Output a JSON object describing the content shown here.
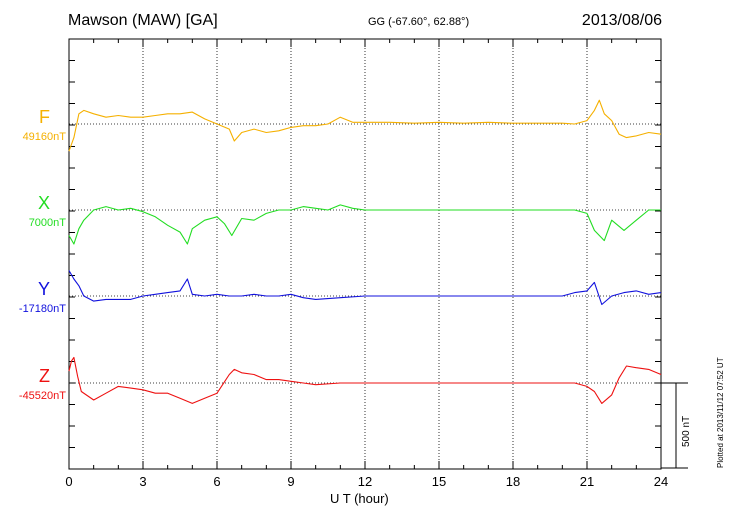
{
  "header": {
    "title": "Mawson (MAW)  [GA]",
    "coords": "GG (-67.60°,  62.88°)",
    "date": "2013/08/06"
  },
  "plotted_note": "Plotted at 2013/11/12 07:52 UT",
  "scale_bar_label": "500 nT",
  "colors": {
    "F": "#f5b000",
    "X": "#22dd22",
    "Y": "#1111dd",
    "Z": "#ee1111"
  },
  "chart_data": {
    "type": "line",
    "title": "Mawson (MAW)  [GA]",
    "xlabel": "U T (hour)",
    "ylabel": "",
    "xlim": [
      0,
      24
    ],
    "x_ticks": [
      0,
      3,
      6,
      9,
      12,
      15,
      18,
      21,
      24
    ],
    "tick_labels": [
      "0",
      "3",
      "6",
      "9",
      "12",
      "15",
      "18",
      "21",
      "24"
    ],
    "grid": true,
    "scale_bar_nT": 500,
    "channels": [
      {
        "name": "F",
        "baseline_label": "49160nT",
        "color": "#f5b000",
        "x": [
          0,
          0.2,
          0.4,
          0.6,
          1,
          1.5,
          2,
          2.5,
          3,
          3.5,
          4,
          4.5,
          5,
          5.5,
          6,
          6.5,
          6.7,
          7,
          7.5,
          8,
          8.5,
          9,
          9.5,
          10,
          10.5,
          11,
          11.5,
          12,
          13,
          14,
          15,
          16,
          17,
          18,
          19,
          20,
          20.5,
          21,
          21.3,
          21.5,
          21.7,
          22,
          22.3,
          22.6,
          23,
          23.5,
          24
        ],
        "values": [
          -160,
          -80,
          60,
          80,
          60,
          40,
          50,
          40,
          40,
          50,
          60,
          60,
          70,
          30,
          0,
          -30,
          -100,
          -50,
          -30,
          -50,
          -40,
          -20,
          -10,
          -10,
          0,
          40,
          10,
          10,
          10,
          5,
          10,
          5,
          10,
          5,
          5,
          5,
          0,
          20,
          80,
          140,
          60,
          20,
          -60,
          -80,
          -70,
          -50,
          -60
        ]
      },
      {
        "name": "X",
        "baseline_label": "7000nT",
        "color": "#22dd22",
        "x": [
          0,
          0.2,
          0.4,
          0.6,
          1,
          1.5,
          2,
          2.5,
          3,
          3.5,
          4,
          4.5,
          4.8,
          5,
          5.5,
          6,
          6.3,
          6.6,
          7,
          7.5,
          8,
          8.5,
          9,
          9.5,
          10,
          10.5,
          11,
          11.5,
          12,
          13,
          14,
          15,
          16,
          17,
          18,
          19,
          20,
          20.5,
          21,
          21.3,
          21.7,
          22,
          22.5,
          23,
          23.5,
          24
        ],
        "values": [
          -150,
          -200,
          -110,
          -60,
          0,
          20,
          0,
          10,
          -10,
          -40,
          -90,
          -130,
          -200,
          -110,
          -60,
          -40,
          -80,
          -150,
          -50,
          -60,
          -20,
          0,
          0,
          20,
          10,
          0,
          30,
          10,
          0,
          0,
          0,
          0,
          0,
          0,
          0,
          0,
          0,
          0,
          -20,
          -120,
          -180,
          -60,
          -120,
          -60,
          0,
          0
        ]
      },
      {
        "name": "Y",
        "baseline_label": "-17180nT",
        "color": "#1111dd",
        "x": [
          0,
          0.2,
          0.4,
          0.6,
          1,
          1.5,
          2,
          2.5,
          3,
          3.5,
          4,
          4.5,
          4.8,
          5,
          5.5,
          6,
          6.5,
          7,
          7.5,
          8,
          8.5,
          9,
          9.5,
          10,
          11,
          12,
          13,
          14,
          15,
          16,
          17,
          18,
          19,
          20,
          20.5,
          21,
          21.3,
          21.6,
          22,
          22.5,
          23,
          23.5,
          24
        ],
        "values": [
          150,
          100,
          60,
          0,
          -30,
          -20,
          -20,
          -20,
          0,
          10,
          20,
          30,
          100,
          10,
          0,
          10,
          0,
          0,
          10,
          0,
          0,
          10,
          -10,
          -20,
          -10,
          0,
          0,
          0,
          0,
          0,
          0,
          0,
          0,
          0,
          20,
          30,
          80,
          -50,
          0,
          20,
          30,
          10,
          20
        ]
      },
      {
        "name": "Z",
        "baseline_label": "-45520nT",
        "color": "#ee1111",
        "x": [
          0,
          0.1,
          0.2,
          0.35,
          0.5,
          1,
          1.5,
          2,
          2.5,
          3,
          3.5,
          4,
          4.5,
          5,
          5.5,
          6,
          6.5,
          6.7,
          7,
          7.5,
          8,
          8.5,
          9,
          9.5,
          10,
          11,
          12,
          13,
          14,
          15,
          16,
          17,
          18,
          19,
          20,
          20.5,
          21,
          21.3,
          21.6,
          22,
          22.3,
          22.6,
          23,
          23.5,
          24
        ],
        "values": [
          70,
          130,
          150,
          40,
          -50,
          -100,
          -60,
          -20,
          -30,
          -40,
          -60,
          -60,
          -90,
          -120,
          -90,
          -60,
          50,
          80,
          60,
          50,
          20,
          20,
          10,
          0,
          -10,
          0,
          0,
          0,
          0,
          0,
          0,
          0,
          0,
          0,
          0,
          0,
          -20,
          -50,
          -120,
          -70,
          30,
          100,
          90,
          80,
          50
        ]
      }
    ]
  }
}
